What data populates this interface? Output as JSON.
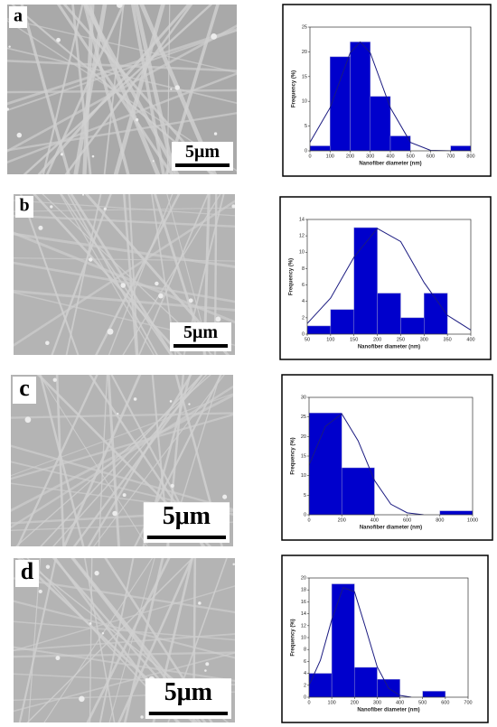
{
  "panels": [
    {
      "label": "a",
      "scale_bar": "5μm"
    },
    {
      "label": "b",
      "scale_bar": "5μm"
    },
    {
      "label": "c",
      "scale_bar": "5μm"
    },
    {
      "label": "d",
      "scale_bar": "5μm"
    }
  ],
  "chart_data": [
    {
      "type": "histogram",
      "bins": [
        0,
        100,
        200,
        300,
        400,
        500,
        600,
        700,
        800
      ],
      "values": [
        1,
        19,
        22,
        11,
        3,
        0,
        0,
        1
      ],
      "color": "#0000cc",
      "xlim": [
        0,
        800
      ],
      "xticks": [
        0,
        100,
        200,
        300,
        400,
        500,
        600,
        700,
        800
      ],
      "ylim": [
        0,
        25
      ],
      "yticks": [
        0,
        5,
        10,
        15,
        20,
        25
      ],
      "xlabel": "Nanofiber diameter (nm)",
      "ylabel": "Frequency (%)",
      "curve": {
        "color": "#1a1a80",
        "x": [
          0,
          100,
          200,
          250,
          300,
          400,
          500,
          600,
          700,
          800
        ],
        "values": [
          1.7,
          8.7,
          19.8,
          22,
          19.8,
          8.7,
          1.7,
          0.1,
          0,
          0
        ]
      }
    },
    {
      "type": "histogram",
      "bins": [
        50,
        100,
        150,
        200,
        250,
        300,
        350
      ],
      "values": [
        1,
        3,
        13,
        5,
        2,
        5
      ],
      "color": "#0000cc",
      "xlim": [
        50,
        400
      ],
      "xticks": [
        50,
        100,
        150,
        200,
        250,
        300,
        350,
        400
      ],
      "ylim": [
        0,
        14
      ],
      "yticks": [
        0,
        2,
        4,
        6,
        8,
        10,
        12,
        14
      ],
      "xlabel": "Nanofiber diameter (nm)",
      "ylabel": "Frequency (%)",
      "curve": {
        "color": "#1a1a80",
        "x": [
          50,
          100,
          150,
          200,
          250,
          300,
          350,
          400
        ],
        "values": [
          1.3,
          4.4,
          9.4,
          12.9,
          11.3,
          6.3,
          2.3,
          0.5
        ]
      }
    },
    {
      "type": "histogram",
      "bins": [
        0,
        200,
        400,
        600,
        800,
        1000
      ],
      "values": [
        26,
        12,
        0,
        0,
        1
      ],
      "color": "#0000cc",
      "xlim": [
        0,
        1000
      ],
      "xticks": [
        0,
        200,
        400,
        600,
        800,
        1000
      ],
      "ylim": [
        0,
        30
      ],
      "yticks": [
        0,
        5,
        10,
        15,
        20,
        25,
        30
      ],
      "xlabel": "Nanofiber diameter (nm)",
      "ylabel": "Frequency (%)",
      "curve": {
        "color": "#1a1a80",
        "x": [
          0,
          100,
          200,
          300,
          400,
          500,
          600,
          700
        ],
        "values": [
          12.7,
          22.6,
          25.8,
          18.9,
          8.8,
          2.7,
          0.5,
          0
        ]
      }
    },
    {
      "type": "histogram",
      "bins": [
        0,
        100,
        200,
        300,
        400,
        500,
        600
      ],
      "values": [
        4,
        19,
        5,
        3,
        0,
        1
      ],
      "color": "#0000cc",
      "xlim": [
        0,
        700
      ],
      "xticks": [
        0,
        100,
        200,
        300,
        400,
        500,
        600,
        700
      ],
      "ylim": [
        0,
        20
      ],
      "yticks": [
        0,
        2,
        4,
        6,
        8,
        10,
        12,
        14,
        16,
        18,
        20
      ],
      "xlabel": "Nanofiber diameter (nm)",
      "ylabel": "Frequency (%)",
      "curve": {
        "color": "#1a1a80",
        "x": [
          0,
          50,
          100,
          150,
          200,
          250,
          300,
          350,
          400,
          450
        ],
        "values": [
          2.0,
          6.2,
          13.0,
          18.4,
          17.7,
          11.5,
          5.1,
          1.5,
          0.3,
          0
        ]
      }
    }
  ]
}
